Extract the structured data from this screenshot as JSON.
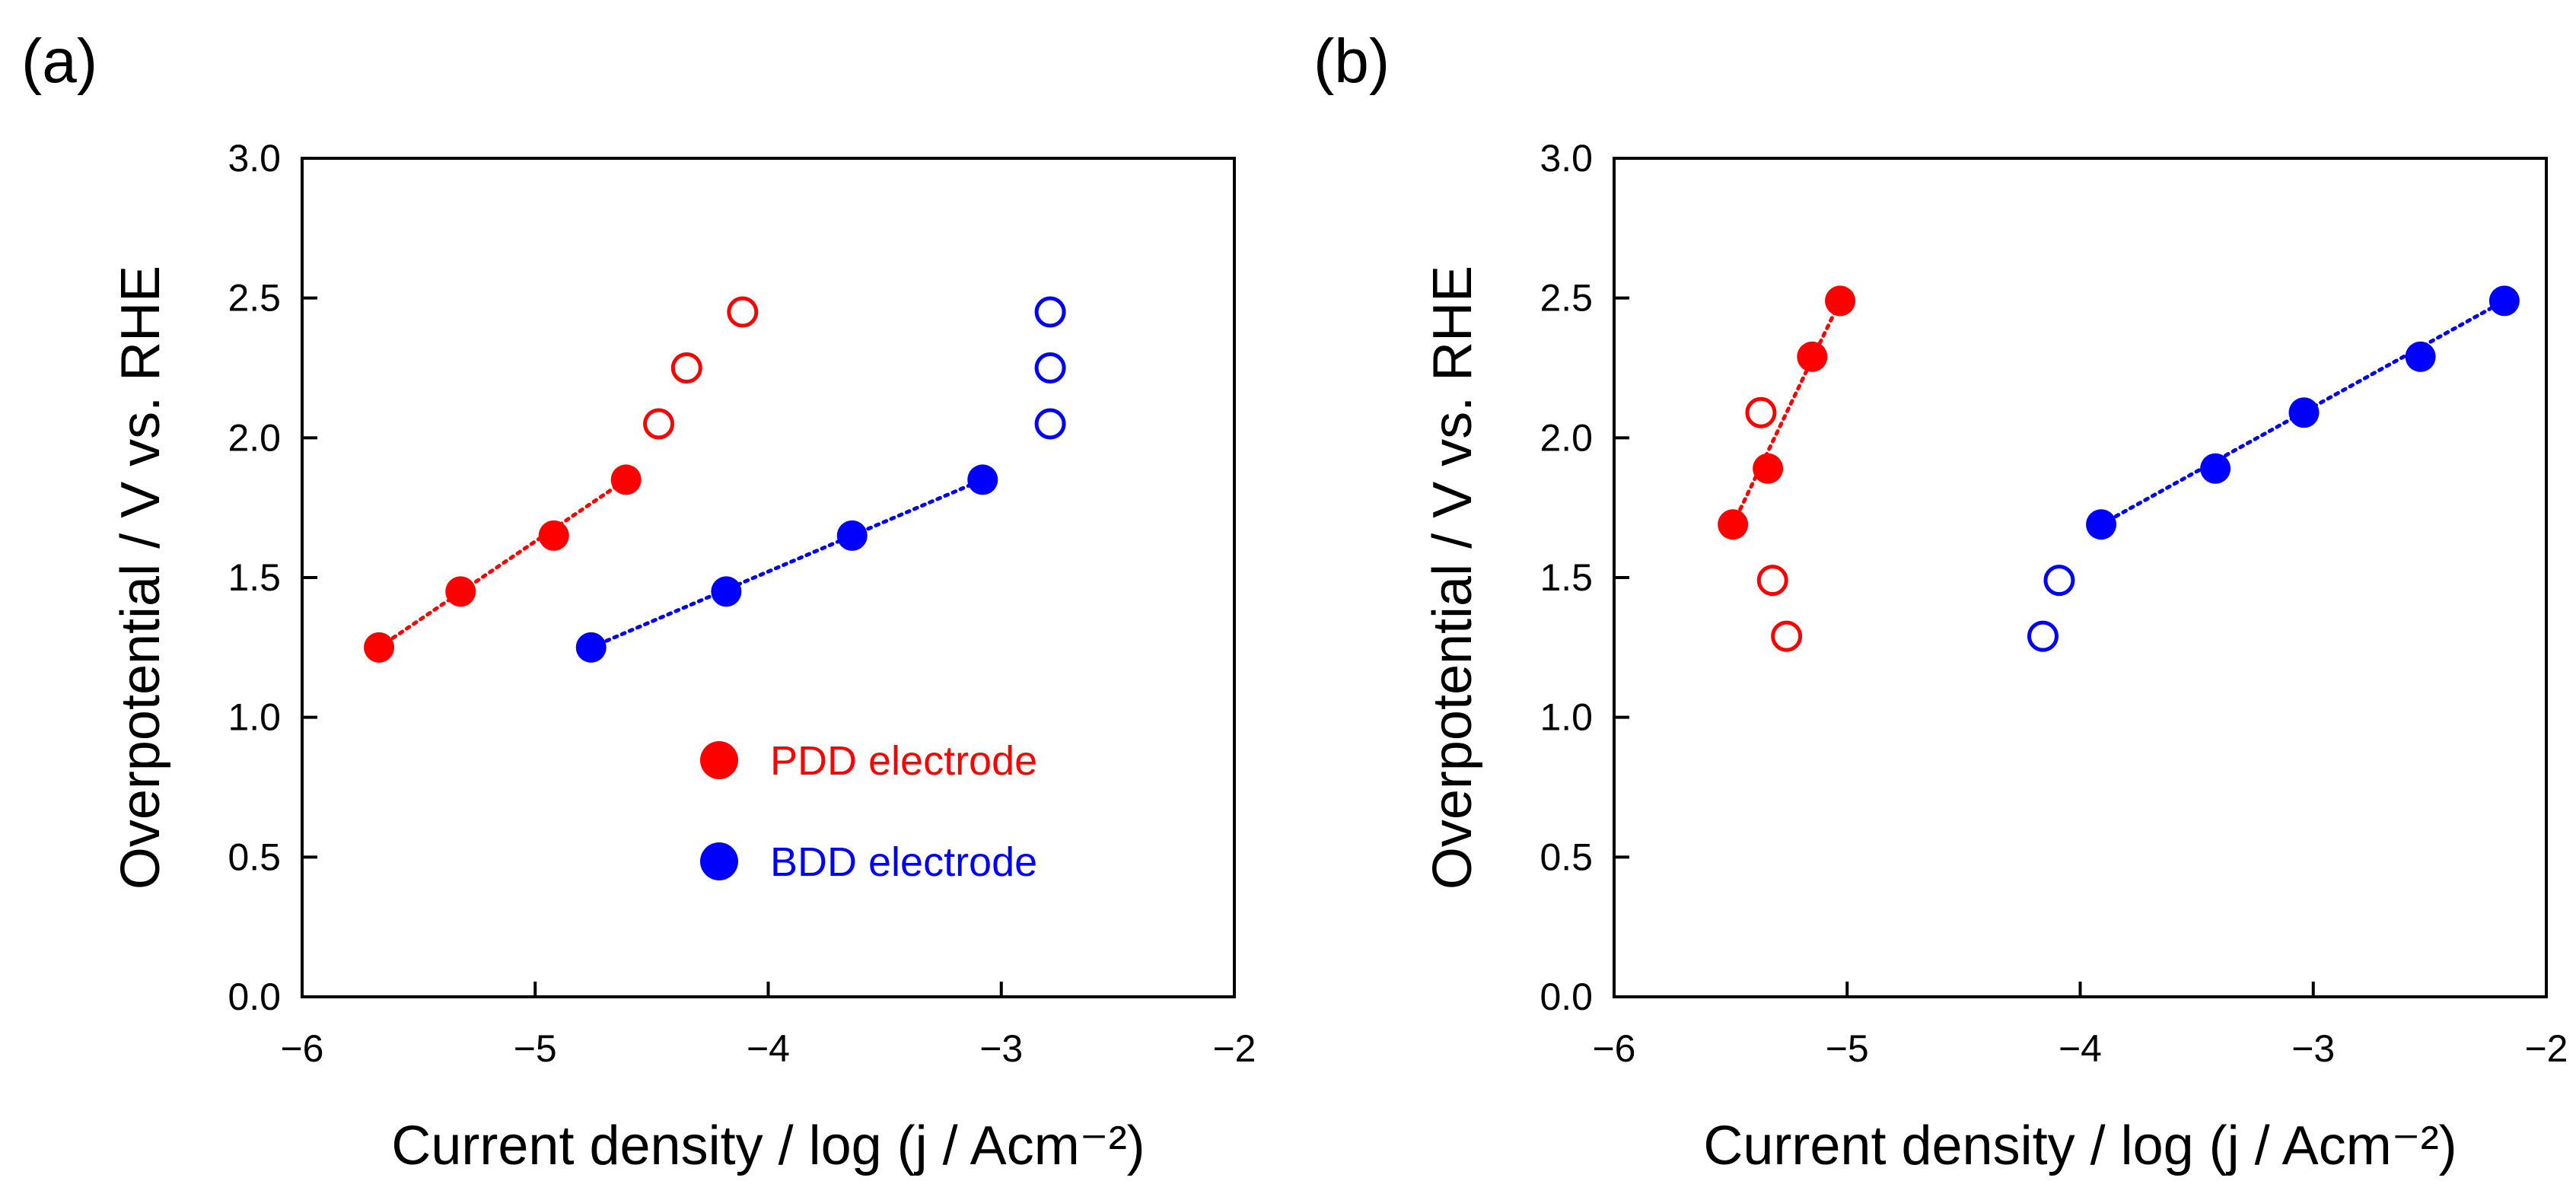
{
  "chart_data": [
    {
      "type": "scatter",
      "panel_label": "(a)",
      "xlabel": "Current density / log (j / Acm⁻²)",
      "ylabel": "Overpotential / V vs. RHE",
      "xlim": [
        -6,
        -2
      ],
      "ylim": [
        0,
        3.0
      ],
      "xticks": [
        -6,
        -5,
        -4,
        -3,
        -2
      ],
      "xtick_labels": [
        "−6",
        "−5",
        "−4",
        "−3",
        "−2"
      ],
      "yticks": [
        0,
        0.5,
        1.0,
        1.5,
        2.0,
        2.5,
        3.0
      ],
      "ytick_labels": [
        "0.0",
        "0.5",
        "1.0",
        "1.5",
        "2.0",
        "2.5",
        "3.0"
      ],
      "grid": false,
      "legend_position": "lower-right",
      "series": [
        {
          "name": "PDD electrode",
          "color": "#ff0000",
          "filled": [
            [
              -5.67,
              1.25
            ],
            [
              -5.32,
              1.45
            ],
            [
              -4.92,
              1.65
            ],
            [
              -4.61,
              1.85
            ]
          ],
          "open": [
            [
              -4.47,
              2.05
            ],
            [
              -4.35,
              2.25
            ],
            [
              -4.11,
              2.45
            ]
          ],
          "fit_line": [
            [
              -5.67,
              1.25
            ],
            [
              -4.61,
              1.85
            ]
          ]
        },
        {
          "name": "BDD electrode",
          "color": "#0000ff",
          "filled": [
            [
              -4.76,
              1.25
            ],
            [
              -4.18,
              1.45
            ],
            [
              -3.64,
              1.65
            ],
            [
              -3.08,
              1.85
            ]
          ],
          "open": [
            [
              -2.79,
              2.05
            ],
            [
              -2.79,
              2.25
            ],
            [
              -2.79,
              2.45
            ]
          ],
          "fit_line": [
            [
              -4.76,
              1.25
            ],
            [
              -3.08,
              1.85
            ]
          ]
        }
      ],
      "legend": [
        {
          "label": "PDD electrode",
          "color": "#ff0000"
        },
        {
          "label": "BDD electrode",
          "color": "#0000ff"
        }
      ]
    },
    {
      "type": "scatter",
      "panel_label": "(b)",
      "xlabel": "Current density / log (j / Acm⁻²)",
      "ylabel": "Overpotential / V vs. RHE",
      "xlim": [
        -6,
        -2
      ],
      "ylim": [
        0,
        3.0
      ],
      "xticks": [
        -6,
        -5,
        -4,
        -3,
        -2
      ],
      "xtick_labels": [
        "−6",
        "−5",
        "−4",
        "−3",
        "−2"
      ],
      "yticks": [
        0,
        0.5,
        1.0,
        1.5,
        2.0,
        2.5,
        3.0
      ],
      "ytick_labels": [
        "0.0",
        "0.5",
        "1.0",
        "1.5",
        "2.0",
        "2.5",
        "3.0"
      ],
      "grid": false,
      "series": [
        {
          "name": "PDD electrode",
          "color": "#ff0000",
          "filled": [
            [
              -5.49,
              1.69
            ],
            [
              -5.34,
              1.89
            ],
            [
              -5.15,
              2.29
            ],
            [
              -5.03,
              2.49
            ]
          ],
          "open": [
            [
              -5.26,
              1.29
            ],
            [
              -5.32,
              1.49
            ],
            [
              -5.37,
              2.09
            ]
          ],
          "fit_line": [
            [
              -5.49,
              1.69
            ],
            [
              -5.03,
              2.49
            ]
          ]
        },
        {
          "name": "BDD electrode",
          "color": "#0000ff",
          "filled": [
            [
              -3.91,
              1.69
            ],
            [
              -3.42,
              1.89
            ],
            [
              -3.04,
              2.09
            ],
            [
              -2.54,
              2.29
            ],
            [
              -2.18,
              2.49
            ]
          ],
          "open": [
            [
              -4.16,
              1.29
            ],
            [
              -4.09,
              1.49
            ]
          ],
          "fit_line": [
            [
              -3.91,
              1.69
            ],
            [
              -2.18,
              2.49
            ]
          ]
        }
      ]
    }
  ]
}
